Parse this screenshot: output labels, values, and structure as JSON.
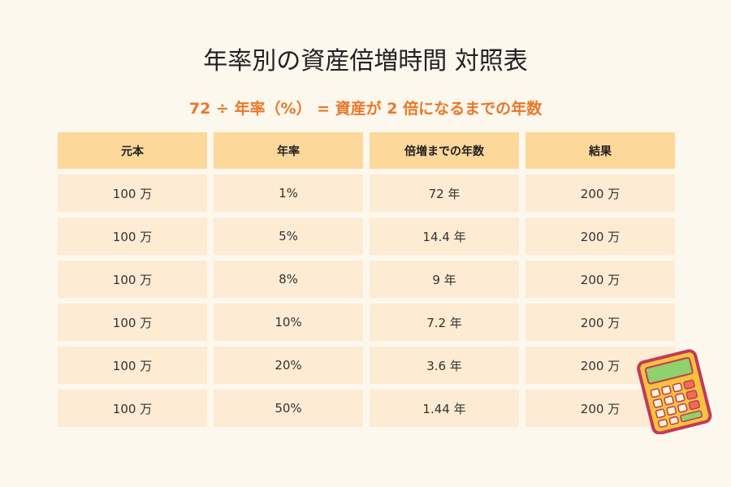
{
  "header": {
    "title": "年率別の資産倍増時間 対照表",
    "subtitle": "72 ÷ 年率（%） = 資産が 2 倍になるまでの年数"
  },
  "table": {
    "columns": [
      "元本",
      "年率",
      "倍増までの年数",
      "結果"
    ],
    "rows": [
      [
        "100 万",
        "1%",
        "72 年",
        "200 万"
      ],
      [
        "100 万",
        "5%",
        "14.4 年",
        "200 万"
      ],
      [
        "100 万",
        "8%",
        "9 年",
        "200 万"
      ],
      [
        "100 万",
        "10%",
        "7.2 年",
        "200 万"
      ],
      [
        "100 万",
        "20%",
        "3.6 年",
        "200 万"
      ],
      [
        "100 万",
        "50%",
        "1.44 年",
        "200 万"
      ]
    ]
  }
}
